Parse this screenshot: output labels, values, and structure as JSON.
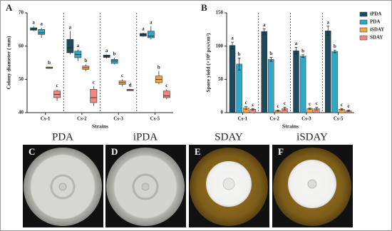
{
  "chart_data": [
    {
      "type": "box",
      "panel": "A",
      "y_label": "Colony diameter ( mm)",
      "x_label": "Strains",
      "categories": [
        "Cs-1",
        "Cs-2",
        "Cs-3",
        "Cs-5"
      ],
      "ylim": [
        40,
        70
      ],
      "yticks": [
        40,
        50,
        60,
        70
      ],
      "series": [
        {
          "name": "iPDA",
          "color": "#1e4b5c",
          "min": [
            64.5,
            57.5,
            56.3,
            62.8
          ],
          "q1": [
            64.8,
            58,
            56.6,
            63
          ],
          "median": [
            65,
            59.5,
            57,
            63.5
          ],
          "q3": [
            65.5,
            62,
            57.3,
            63.8
          ],
          "max": [
            66,
            64.5,
            57.5,
            64
          ],
          "letters": [
            "a",
            "a",
            "a",
            "a"
          ]
        },
        {
          "name": "PDA",
          "color": "#2fa7c6",
          "min": [
            62.5,
            55.5,
            54.5,
            62
          ],
          "q1": [
            63.5,
            56.5,
            54.8,
            62.5
          ],
          "median": [
            64,
            57.5,
            55.5,
            63
          ],
          "q3": [
            65,
            58.5,
            56,
            64.5
          ],
          "max": [
            65.5,
            59,
            56.5,
            66
          ],
          "letters": [
            "a",
            "a",
            "b",
            "a"
          ]
        },
        {
          "name": "iSDAY",
          "color": "#f2a444",
          "min": [
            53.2,
            52.5,
            48,
            48.5
          ],
          "q1": [
            53.3,
            53,
            48.5,
            49
          ],
          "median": [
            53.5,
            53.5,
            49,
            50
          ],
          "q3": [
            53.7,
            54,
            49.5,
            51
          ],
          "max": [
            53.8,
            54.5,
            50,
            52.5
          ],
          "letters": [
            "b",
            "b",
            "c",
            "b"
          ]
        },
        {
          "name": "SDAY",
          "color": "#f2877f",
          "min": [
            43.5,
            42,
            46.5,
            44
          ],
          "q1": [
            44.5,
            43,
            46.6,
            44.5
          ],
          "median": [
            45.5,
            44.5,
            46.8,
            45
          ],
          "q3": [
            46.5,
            47,
            47,
            46.5
          ],
          "max": [
            47,
            48,
            47.1,
            47
          ],
          "letters": [
            "c",
            "c",
            "d",
            "c"
          ]
        }
      ]
    },
    {
      "type": "bar",
      "panel": "B",
      "y_label": "Spore yield (×10⁸ pcs/cm²)",
      "x_label": "Strains",
      "categories": [
        "Cs-1",
        "Cs-2",
        "Cs-3",
        "Cs-5"
      ],
      "ylim": [
        0,
        150
      ],
      "yticks": [
        0,
        50,
        100,
        150
      ],
      "legend": "right",
      "series": [
        {
          "name": "iPDA",
          "color": "#1e4b5c",
          "values": [
            101,
            122,
            93,
            123
          ],
          "errors": [
            5,
            4,
            5,
            7
          ],
          "letters": [
            "a",
            "a",
            "a",
            "a"
          ]
        },
        {
          "name": "PDA",
          "color": "#2fa7c6",
          "values": [
            73,
            80,
            85,
            92
          ],
          "errors": [
            9,
            3,
            2,
            2
          ],
          "letters": [
            "b",
            "b",
            "b",
            "b"
          ]
        },
        {
          "name": "iSDAY",
          "color": "#f2a444",
          "values": [
            7,
            3,
            6,
            5
          ],
          "errors": [
            2,
            1,
            1,
            1
          ],
          "letters": [
            "c",
            "c",
            "c",
            "c"
          ]
        },
        {
          "name": "SDAY",
          "color": "#f2877f",
          "values": [
            5,
            6,
            6,
            3
          ],
          "errors": [
            1,
            2,
            2,
            1
          ],
          "letters": [
            "c",
            "c",
            "c",
            "c"
          ]
        }
      ]
    }
  ],
  "photos": [
    {
      "letter": "C",
      "title": "PDA"
    },
    {
      "letter": "D",
      "title": "iPDA"
    },
    {
      "letter": "E",
      "title": "SDAY"
    },
    {
      "letter": "F",
      "title": "iSDAY"
    }
  ]
}
